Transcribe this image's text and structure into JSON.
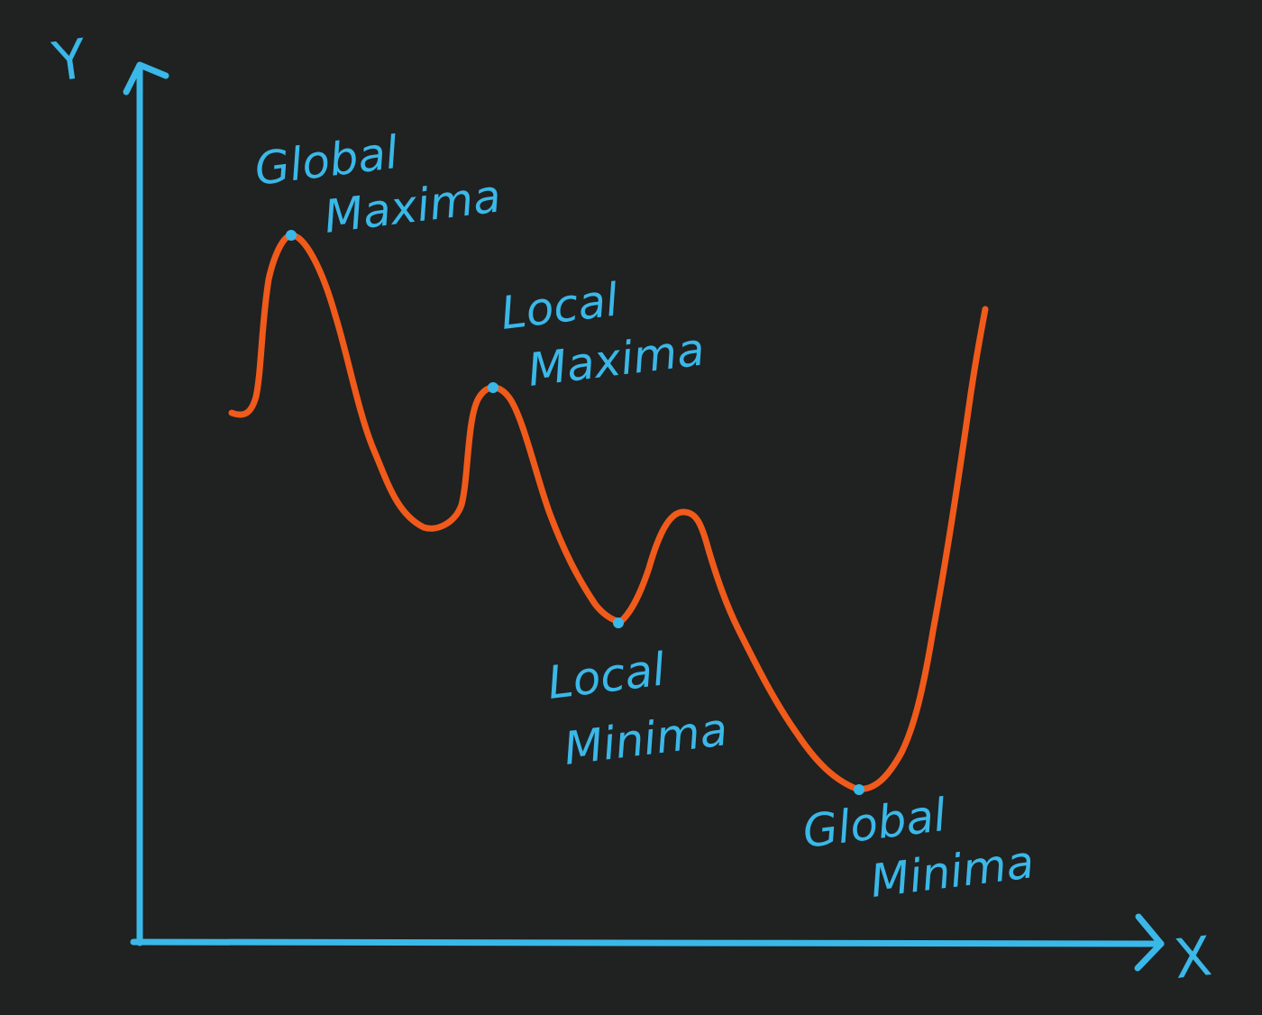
{
  "colors": {
    "background": "#202121",
    "axis": "#3ab8e8",
    "curve": "#f05a1a",
    "marker": "#3ab8e8",
    "text": "#3ab8e8"
  },
  "axes": {
    "x_label": "X",
    "y_label": "Y"
  },
  "curve": {
    "description_points": "single wavy function curve with two peaks and two valleys"
  },
  "annotations": {
    "global_maxima": {
      "line1": "Global",
      "line2": "Maxima"
    },
    "local_maxima": {
      "line1": "Local",
      "line2": "Maxima"
    },
    "local_minima": {
      "line1": "Local",
      "line2": "Minima"
    },
    "global_minima": {
      "line1": "Global",
      "line2": "Minima"
    }
  }
}
